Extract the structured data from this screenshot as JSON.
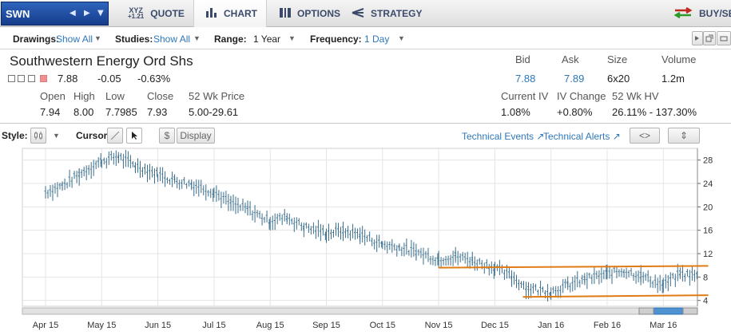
{
  "header": {
    "symbol": "SWN",
    "tabs": [
      {
        "label": "QUOTE",
        "icon": "xyz-quote-icon",
        "icon_text": "XYZ",
        "icon_sub": "+1.21"
      },
      {
        "label": "CHART",
        "icon": "bar-chart-icon"
      },
      {
        "label": "OPTIONS",
        "icon": "options-icon"
      },
      {
        "label": "STRATEGY",
        "icon": "strategy-icon"
      }
    ],
    "buy_sell": "BUY/SELL"
  },
  "toolbar": {
    "drawings_label": "Drawings:",
    "drawings_value": "Show All",
    "studies_label": "Studies:",
    "studies_value": "Show All",
    "range_label": "Range:",
    "range_value": "1 Year",
    "frequency_label": "Frequency:",
    "frequency_value": "1 Day"
  },
  "quote": {
    "company": "Southwestern Energy Ord Shs",
    "last": "7.88",
    "change": "-0.05",
    "change_pct": "-0.63%",
    "labels": {
      "open": "Open",
      "high": "High",
      "low": "Low",
      "close": "Close",
      "wk52": "52 Wk Price",
      "bid": "Bid",
      "ask": "Ask",
      "size": "Size",
      "volume": "Volume",
      "iv": "Current IV",
      "ivchg": "IV Change",
      "hv": "52 Wk HV"
    },
    "open": "7.94",
    "high": "8.00",
    "low": "7.7985",
    "close": "7.93",
    "wk52": "5.00-29.61",
    "bid": "7.88",
    "ask": "7.89",
    "size": "6x20",
    "volume": "1.2m",
    "iv": "1.08%",
    "ivchg": "+0.80%",
    "hv": "26.11% - 137.30%"
  },
  "chart_controls": {
    "style_label": "Style:",
    "cursor_label": "Cursor:",
    "dollar": "$",
    "display": "Display",
    "tech_events": "Technical Events",
    "tech_alerts": "Technical Alerts"
  },
  "chart_data": {
    "type": "line",
    "title": "",
    "x_ticks": [
      "Apr 15",
      "May 15",
      "Jun 15",
      "Jul 15",
      "Aug 15",
      "Sep 15",
      "Oct 15",
      "Nov 15",
      "Dec 15",
      "Jan 16",
      "Feb 16",
      "Mar 16"
    ],
    "y_ticks": [
      4,
      8,
      12,
      16,
      20,
      24,
      28
    ],
    "ylim": [
      3,
      30
    ],
    "grid": true,
    "series": [
      {
        "x_index": [
          0,
          0.3,
          0.6,
          1.0,
          1.3,
          1.6,
          2.0,
          2.3,
          2.6,
          3.0,
          3.3,
          3.6,
          4.0,
          4.3,
          4.6,
          5.0,
          5.3,
          5.6,
          6.0,
          6.3,
          6.6,
          7.0,
          7.3,
          7.6,
          8.0,
          8.3,
          8.6,
          9.0,
          9.3,
          9.6,
          10.0,
          10.3,
          10.6,
          11.0,
          11.3,
          11.6
        ],
        "values": [
          22.5,
          23.5,
          25.5,
          27.8,
          28.5,
          27.0,
          25.5,
          24.5,
          23.8,
          22.5,
          20.5,
          19.5,
          17.5,
          18.2,
          16.5,
          15.5,
          15.8,
          15.2,
          13.5,
          13.0,
          12.2,
          11.0,
          11.5,
          10.8,
          9.5,
          8.0,
          6.0,
          5.5,
          6.5,
          7.5,
          8.5,
          9.0,
          8.2,
          6.5,
          8.5,
          8.2
        ]
      }
    ],
    "annotations": [
      {
        "type": "trendline",
        "x_index": [
          7.0,
          11.8
        ],
        "values": [
          9.6,
          9.9
        ]
      },
      {
        "type": "trendline",
        "x_index": [
          8.5,
          11.8
        ],
        "values": [
          4.6,
          4.9
        ]
      }
    ]
  },
  "colors": {
    "accent": "#2e77bb",
    "trendline": "#e07b14",
    "price": "#3a6e8c",
    "scrollbar": "#4f92d2"
  }
}
